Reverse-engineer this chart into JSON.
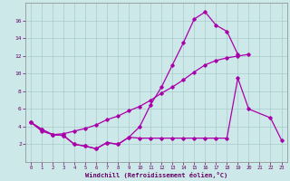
{
  "line1_x": [
    0,
    1,
    2,
    3,
    4,
    5,
    6,
    7,
    8,
    9,
    10,
    11,
    12,
    13,
    14,
    15,
    16,
    17,
    18,
    19
  ],
  "line1_y": [
    4.5,
    3.7,
    3.1,
    3.0,
    2.0,
    1.8,
    1.5,
    2.2,
    2.0,
    2.8,
    4.0,
    6.5,
    8.5,
    11.0,
    13.5,
    16.2,
    17.0,
    15.5,
    14.8,
    12.2
  ],
  "line2_x": [
    0,
    1,
    2,
    3,
    4,
    5,
    6,
    7,
    8,
    9,
    10,
    11,
    12,
    13,
    14,
    15,
    16,
    17,
    18,
    19,
    20
  ],
  "line2_y": [
    4.5,
    3.7,
    3.1,
    3.2,
    3.5,
    3.8,
    4.2,
    4.8,
    5.2,
    5.8,
    6.3,
    7.0,
    7.8,
    8.5,
    9.3,
    10.2,
    11.0,
    11.5,
    11.8,
    12.0,
    12.2
  ],
  "line3_x": [
    0,
    1,
    2,
    3,
    4,
    5,
    6,
    7,
    8,
    9,
    10,
    11,
    12,
    13,
    14,
    15,
    16,
    17,
    18,
    19,
    20,
    22,
    23
  ],
  "line3_y": [
    4.5,
    3.5,
    3.1,
    3.0,
    2.0,
    1.8,
    1.5,
    2.2,
    2.0,
    2.8,
    2.7,
    2.7,
    2.7,
    2.7,
    2.7,
    2.7,
    2.7,
    2.7,
    2.7,
    9.5,
    6.0,
    5.0,
    2.5
  ],
  "line_color": "#aa00aa",
  "bg_color": "#cce8e8",
  "grid_color": "#aacccc",
  "xlabel": "Windchill (Refroidissement éolien,°C)",
  "xlabel_color": "#660066",
  "tick_color": "#660066",
  "xlim": [
    -0.5,
    23.5
  ],
  "ylim": [
    0,
    18
  ],
  "yticks": [
    2,
    4,
    6,
    8,
    10,
    12,
    14,
    16
  ],
  "xticks": [
    0,
    1,
    2,
    3,
    4,
    5,
    6,
    7,
    8,
    9,
    10,
    11,
    12,
    13,
    14,
    15,
    16,
    17,
    18,
    19,
    20,
    21,
    22,
    23
  ]
}
